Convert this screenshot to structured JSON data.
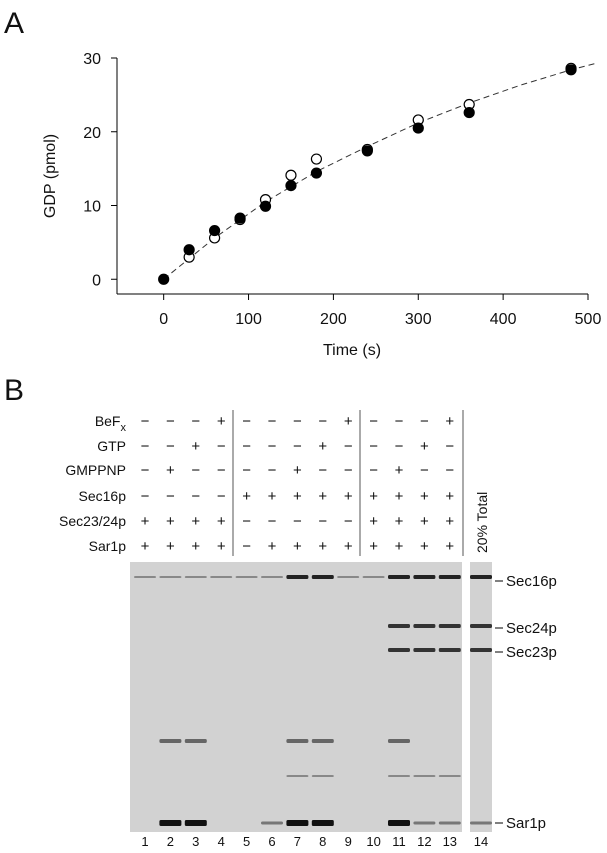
{
  "panel_a_label": "A",
  "chart_data": {
    "type": "scatter",
    "xlabel": "Time (s)",
    "ylabel": "GDP (pmol)",
    "xlim": [
      -55,
      500
    ],
    "xticks": [
      0,
      100,
      200,
      300,
      400,
      500
    ],
    "ylim": [
      -2,
      30
    ],
    "yticks": [
      0,
      10,
      20,
      30
    ],
    "series": [
      {
        "style": "open",
        "color": "#000000",
        "x": [
          30,
          60,
          90,
          120,
          150,
          180,
          240,
          300,
          360,
          480
        ],
        "values": [
          3,
          5.6,
          8.1,
          10.8,
          14.1,
          16.3,
          17.6,
          21.6,
          23.7,
          28.6
        ]
      },
      {
        "style": "filled",
        "color": "#000000",
        "x": [
          0,
          30,
          60,
          90,
          120,
          150,
          180,
          240,
          300,
          360,
          480
        ],
        "values": [
          0,
          4,
          6.6,
          8.3,
          9.9,
          12.7,
          14.4,
          17.4,
          20.5,
          22.6,
          28.4
        ]
      }
    ],
    "fit": {
      "x": [
        0,
        60,
        120,
        180,
        240,
        300,
        360,
        420,
        480,
        510
      ],
      "values": [
        0,
        5.6,
        10.5,
        14.6,
        18,
        21.2,
        23.9,
        26.3,
        28.4,
        29.3
      ]
    }
  },
  "panel_b": {
    "label": "B",
    "rows": [
      {
        "label": "BeF",
        "sub": "x",
        "marks": [
          "−",
          "−",
          "−",
          "+",
          "−",
          "−",
          "−",
          "−",
          "+",
          "−",
          "−",
          "−",
          "+"
        ]
      },
      {
        "label": "GTP",
        "marks": [
          "−",
          "−",
          "+",
          "−",
          "−",
          "−",
          "−",
          "+",
          "−",
          "−",
          "−",
          "+",
          "−"
        ]
      },
      {
        "label": "GMPPNP",
        "marks": [
          "−",
          "+",
          "−",
          "−",
          "−",
          "−",
          "+",
          "−",
          "−",
          "−",
          "+",
          "−",
          "−"
        ]
      },
      {
        "label": "Sec16p",
        "marks": [
          "−",
          "−",
          "−",
          "−",
          "+",
          "+",
          "+",
          "+",
          "+",
          "+",
          "+",
          "+",
          "+"
        ]
      },
      {
        "label": "Sec23/24p",
        "marks": [
          "+",
          "+",
          "+",
          "+",
          "−",
          "−",
          "−",
          "−",
          "−",
          "+",
          "+",
          "+",
          "+"
        ]
      },
      {
        "label": "Sar1p",
        "marks": [
          "+",
          "+",
          "+",
          "+",
          "−",
          "+",
          "+",
          "+",
          "+",
          "+",
          "+",
          "+",
          "+"
        ]
      }
    ],
    "total_label": "20% Total",
    "lanes": [
      "1",
      "2",
      "3",
      "4",
      "5",
      "6",
      "7",
      "8",
      "9",
      "10",
      "11",
      "12",
      "13",
      "14"
    ],
    "bands": [
      "Sec16p",
      "Sec24p",
      "Sec23p",
      "Sar1p"
    ]
  }
}
